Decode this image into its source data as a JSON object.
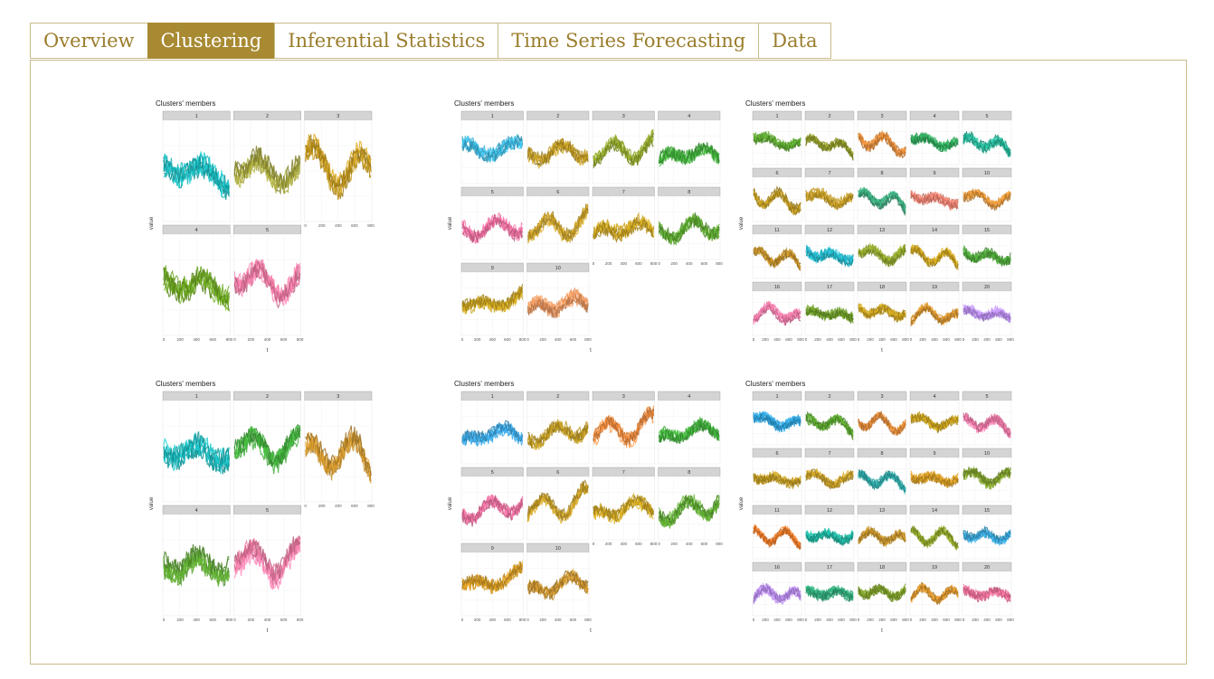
{
  "tabs": [
    {
      "label": "Overview",
      "active": false
    },
    {
      "label": "Clustering",
      "active": true
    },
    {
      "label": "Inferential Statistics",
      "active": false
    },
    {
      "label": "Time Series Forecasting",
      "active": false
    },
    {
      "label": "Data",
      "active": false
    }
  ],
  "colors": {
    "accent": "#a88a32",
    "accent_text": "#9a7d2c",
    "border": "#c9bb8c",
    "strip": "#d4d4d4"
  },
  "chart_data": [
    {
      "type": "line",
      "title": "Clusters' members",
      "xlabel": "t",
      "ylabel": "value",
      "panels": [
        "1",
        "2",
        "3",
        "4",
        "5"
      ],
      "xticks": [
        "0",
        "200",
        "400",
        "600",
        "800"
      ],
      "palette": [
        "#16b9bd",
        "#a3a33a",
        "#c69a1c",
        "#6aa51e",
        "#f47aa6"
      ]
    },
    {
      "type": "line",
      "title": "Clusters' members",
      "xlabel": "t",
      "ylabel": "value",
      "panels": [
        "1",
        "2",
        "3",
        "4",
        "5",
        "6",
        "7",
        "8",
        "9",
        "10"
      ],
      "xticks": [
        "0",
        "200",
        "400",
        "600",
        "800"
      ],
      "palette": [
        "#3ab6de",
        "#bf9a22",
        "#8fa52a",
        "#3fae3a",
        "#ef6fa0",
        "#c79e26",
        "#c9a21e",
        "#5aa52e",
        "#c9a21e",
        "#e8925a"
      ]
    },
    {
      "type": "line",
      "title": "Clusters' members",
      "xlabel": "t",
      "ylabel": "value",
      "panels": [
        "1",
        "2",
        "3",
        "4",
        "5",
        "6",
        "7",
        "8",
        "9",
        "10",
        "11",
        "12",
        "13",
        "14",
        "15",
        "16",
        "17",
        "18",
        "19",
        "20"
      ],
      "xticks": [
        "0",
        "200",
        "400",
        "600",
        "800"
      ],
      "palette": [
        "#5aa52e",
        "#8f9a2a",
        "#e08b3a",
        "#2ea85a",
        "#25b598",
        "#bf9a22",
        "#c79e26",
        "#3aa87a",
        "#f08070",
        "#e0953a",
        "#c2902a",
        "#1fb3c6",
        "#8fa52a",
        "#c9a21e",
        "#4ea63a",
        "#f079a8",
        "#6a9a28",
        "#c9a21e",
        "#d8942e",
        "#b98cf0"
      ]
    },
    {
      "type": "line",
      "title": "Clusters' members",
      "xlabel": "t",
      "ylabel": "value",
      "panels": [
        "1",
        "2",
        "3",
        "4",
        "5"
      ],
      "xticks": [
        "0",
        "200",
        "400",
        "600",
        "800"
      ],
      "palette": [
        "#16b9bd",
        "#3fae3a",
        "#c9912a",
        "#5aa52e",
        "#f47aa6"
      ]
    },
    {
      "type": "line",
      "title": "Clusters' members",
      "xlabel": "t",
      "ylabel": "value",
      "panels": [
        "1",
        "2",
        "3",
        "4",
        "5",
        "6",
        "7",
        "8",
        "9",
        "10"
      ],
      "xticks": [
        "0",
        "200",
        "400",
        "600",
        "800"
      ],
      "palette": [
        "#3aa6e0",
        "#bf9a22",
        "#e8853a",
        "#3fae3a",
        "#ef6fa0",
        "#c79e26",
        "#c9a21e",
        "#5aa52e",
        "#d59a22",
        "#c7902a"
      ]
    },
    {
      "type": "line",
      "title": "Clusters' members",
      "xlabel": "t",
      "ylabel": "value",
      "panels": [
        "1",
        "2",
        "3",
        "4",
        "5",
        "6",
        "7",
        "8",
        "9",
        "10",
        "11",
        "12",
        "13",
        "14",
        "15",
        "16",
        "17",
        "18",
        "19",
        "20"
      ],
      "xticks": [
        "0",
        "200",
        "400",
        "600",
        "800"
      ],
      "palette": [
        "#2a9fd8",
        "#5aa52e",
        "#e08b3a",
        "#c9a21e",
        "#f079a8",
        "#bf9a22",
        "#c79e26",
        "#2ea8a8",
        "#d59a22",
        "#7fa02a",
        "#ea7a2a",
        "#1fb3a0",
        "#c2902a",
        "#8fa52a",
        "#3aa6d8",
        "#b98cf0",
        "#2ea878",
        "#7fa02a",
        "#d8942e",
        "#f0709a"
      ]
    }
  ]
}
